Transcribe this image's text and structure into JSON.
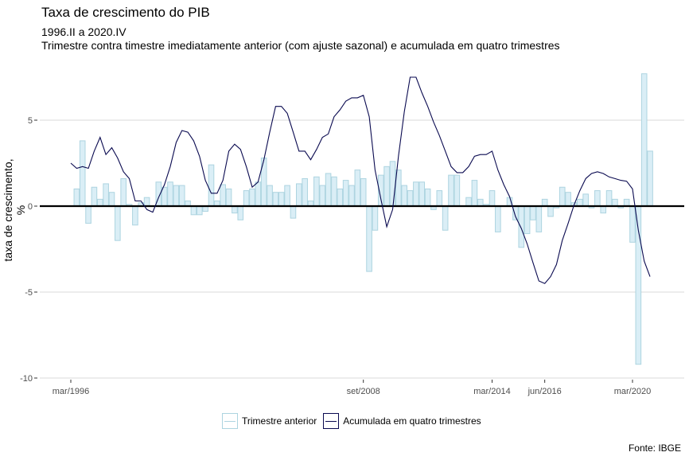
{
  "chart_data": {
    "type": "bar+line",
    "title": "Taxa de crescimento do PIB",
    "subtitle1": "1996.II a 2020.IV",
    "subtitle2": "Trimestre contra timestre imediatamente anterior (com ajuste sazonal) e acumulada em quatro trimestres",
    "xlabel": "",
    "ylabel": "taxa de crescimento, %",
    "ylim": [
      -10,
      8
    ],
    "yticks": [
      {
        "value": 5,
        "label": "5"
      },
      {
        "value": 0,
        "label": "0"
      },
      {
        "value": -5,
        "label": "-5"
      },
      {
        "value": -10,
        "label": "-10"
      }
    ],
    "xticks": [
      {
        "label": "mar/1996",
        "year": 1996,
        "quarter": 1
      },
      {
        "label": "set/2008",
        "year": 2008,
        "quarter": 3
      },
      {
        "label": "mar/2014",
        "year": 2014,
        "quarter": 1
      },
      {
        "label": "jun/2016",
        "year": 2016,
        "quarter": 2
      },
      {
        "label": "mar/2020",
        "year": 2020,
        "quarter": 1
      }
    ],
    "grid": true,
    "legend_position": "bottom",
    "series": [
      {
        "name": "Trimestre anterior",
        "kind": "bar",
        "color": "#daeef6",
        "border": "#add4e0",
        "start": {
          "year": 1996,
          "quarter": 2
        },
        "values": [
          1.0,
          3.8,
          -1.0,
          1.1,
          0.4,
          1.3,
          0.8,
          -2.0,
          1.6,
          0.1,
          -1.1,
          0.2,
          0.5,
          0.0,
          1.4,
          1.1,
          1.4,
          1.2,
          1.2,
          0.3,
          -0.5,
          -0.5,
          -0.3,
          2.4,
          0.3,
          1.25,
          1.0,
          -0.4,
          -0.8,
          0.9,
          1.0,
          1.4,
          2.8,
          1.2,
          0.8,
          0.8,
          1.2,
          -0.7,
          1.3,
          1.6,
          0.3,
          1.7,
          1.2,
          1.9,
          1.7,
          1.0,
          1.5,
          1.2,
          2.1,
          1.6,
          -3.8,
          -1.4,
          1.8,
          2.3,
          2.6,
          2.1,
          1.2,
          0.9,
          1.4,
          1.4,
          1.0,
          -0.2,
          0.9,
          -1.4,
          1.8,
          1.8,
          0.0,
          0.5,
          1.5,
          0.4,
          0.1,
          0.9,
          -1.5,
          0.0,
          0.5,
          -0.8,
          -2.4,
          -1.6,
          -0.8,
          -1.5,
          0.4,
          -0.6,
          -0.1,
          1.1,
          0.8,
          0.2,
          0.4,
          0.7,
          -0.1,
          0.9,
          -0.4,
          0.9,
          0.4,
          -0.1,
          0.4,
          -2.1,
          -9.2,
          7.7,
          3.2
        ]
      },
      {
        "name": "Acumulada em quatro trimestres",
        "kind": "line",
        "color": "#0a0a50",
        "start": {
          "year": 1996,
          "quarter": 1
        },
        "values": [
          2.5,
          2.2,
          2.3,
          2.2,
          3.2,
          4.0,
          3.0,
          3.4,
          2.8,
          2.0,
          1.6,
          0.3,
          0.3,
          -0.2,
          -0.35,
          0.5,
          1.25,
          2.3,
          3.7,
          4.4,
          4.3,
          3.8,
          2.9,
          1.5,
          0.75,
          0.75,
          1.5,
          3.2,
          3.6,
          3.3,
          2.3,
          1.1,
          1.4,
          2.7,
          4.3,
          5.8,
          5.8,
          5.4,
          4.3,
          3.2,
          3.2,
          2.7,
          3.3,
          4.0,
          4.2,
          5.2,
          5.6,
          6.1,
          6.3,
          6.3,
          6.45,
          5.2,
          2.1,
          0.4,
          -1.2,
          -0.2,
          2.9,
          5.5,
          7.5,
          7.5,
          6.6,
          5.8,
          4.9,
          4.1,
          3.2,
          2.3,
          1.95,
          1.95,
          2.3,
          2.9,
          3.0,
          3.0,
          3.2,
          2.1,
          1.25,
          0.55,
          -0.6,
          -1.3,
          -2.2,
          -3.3,
          -4.35,
          -4.5,
          -4.1,
          -3.4,
          -2.0,
          -1.0,
          0.05,
          0.9,
          1.6,
          1.9,
          2.0,
          1.9,
          1.7,
          1.6,
          1.5,
          1.45,
          1.0,
          -1.4,
          -3.2,
          -4.1
        ]
      }
    ],
    "source": "Fonte: IBGE"
  }
}
